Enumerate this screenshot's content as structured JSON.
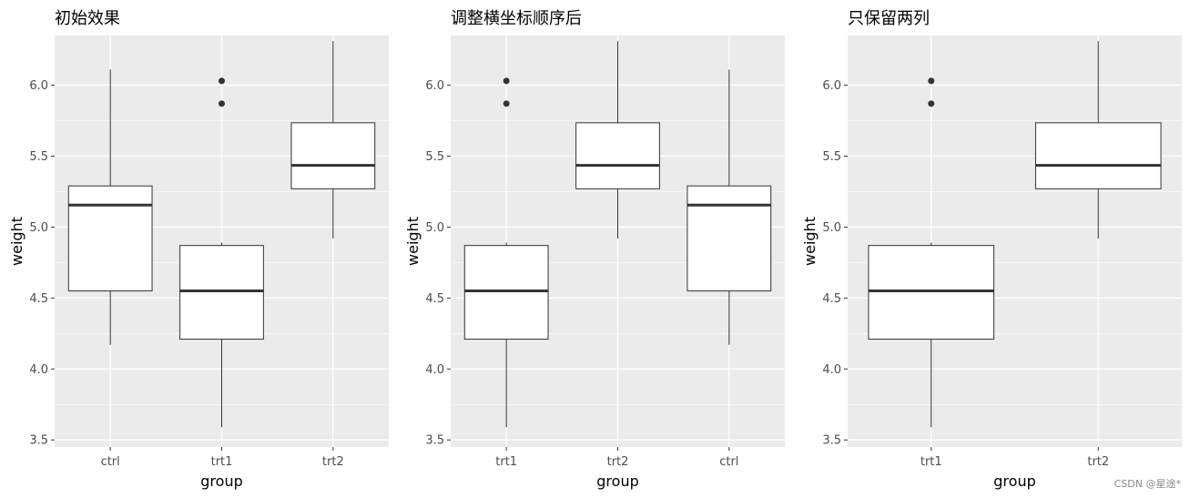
{
  "chart_data": [
    {
      "type": "boxplot",
      "title": "初始效果",
      "xlabel": "group",
      "ylabel": "weight",
      "ylim": [
        3.45,
        6.35
      ],
      "yticks": [
        3.5,
        4.0,
        4.5,
        5.0,
        5.5,
        6.0
      ],
      "ytick_labels": [
        "3.5",
        "4.0",
        "4.5",
        "5.0",
        "5.5",
        "6.0"
      ],
      "categories": [
        "ctrl",
        "trt1",
        "trt2"
      ],
      "boxes": [
        {
          "category": "ctrl",
          "whisker_low": 4.17,
          "q1": 4.55,
          "median": 5.155,
          "q3": 5.29,
          "whisker_high": 6.11,
          "outliers": []
        },
        {
          "category": "trt1",
          "whisker_low": 3.59,
          "q1": 4.21,
          "median": 4.55,
          "q3": 4.87,
          "whisker_high": 4.89,
          "outliers": [
            5.87,
            6.03
          ]
        },
        {
          "category": "trt2",
          "whisker_low": 4.92,
          "q1": 5.27,
          "median": 5.435,
          "q3": 5.735,
          "whisker_high": 6.31,
          "outliers": []
        }
      ],
      "background_color": "#ebebeb",
      "grid": true
    },
    {
      "type": "boxplot",
      "title": "调整横坐标顺序后",
      "xlabel": "group",
      "ylabel": "weight",
      "ylim": [
        3.45,
        6.35
      ],
      "yticks": [
        3.5,
        4.0,
        4.5,
        5.0,
        5.5,
        6.0
      ],
      "ytick_labels": [
        "3.5",
        "4.0",
        "4.5",
        "5.0",
        "5.5",
        "6.0"
      ],
      "categories": [
        "trt1",
        "trt2",
        "ctrl"
      ],
      "boxes": [
        {
          "category": "trt1",
          "whisker_low": 3.59,
          "q1": 4.21,
          "median": 4.55,
          "q3": 4.87,
          "whisker_high": 4.89,
          "outliers": [
            5.87,
            6.03
          ]
        },
        {
          "category": "trt2",
          "whisker_low": 4.92,
          "q1": 5.27,
          "median": 5.435,
          "q3": 5.735,
          "whisker_high": 6.31,
          "outliers": []
        },
        {
          "category": "ctrl",
          "whisker_low": 4.17,
          "q1": 4.55,
          "median": 5.155,
          "q3": 5.29,
          "whisker_high": 6.11,
          "outliers": []
        }
      ],
      "background_color": "#ebebeb",
      "grid": true
    },
    {
      "type": "boxplot",
      "title": "只保留两列",
      "xlabel": "group",
      "ylabel": "weight",
      "ylim": [
        3.45,
        6.35
      ],
      "yticks": [
        3.5,
        4.0,
        4.5,
        5.0,
        5.5,
        6.0
      ],
      "ytick_labels": [
        "3.5",
        "4.0",
        "4.5",
        "5.0",
        "5.5",
        "6.0"
      ],
      "categories": [
        "trt1",
        "trt2"
      ],
      "boxes": [
        {
          "category": "trt1",
          "whisker_low": 3.59,
          "q1": 4.21,
          "median": 4.55,
          "q3": 4.87,
          "whisker_high": 4.89,
          "outliers": [
            5.87,
            6.03
          ]
        },
        {
          "category": "trt2",
          "whisker_low": 4.92,
          "q1": 5.27,
          "median": 5.435,
          "q3": 5.735,
          "whisker_high": 6.31,
          "outliers": []
        }
      ],
      "background_color": "#ebebeb",
      "grid": true
    }
  ],
  "watermark": "CSDN @星途*"
}
